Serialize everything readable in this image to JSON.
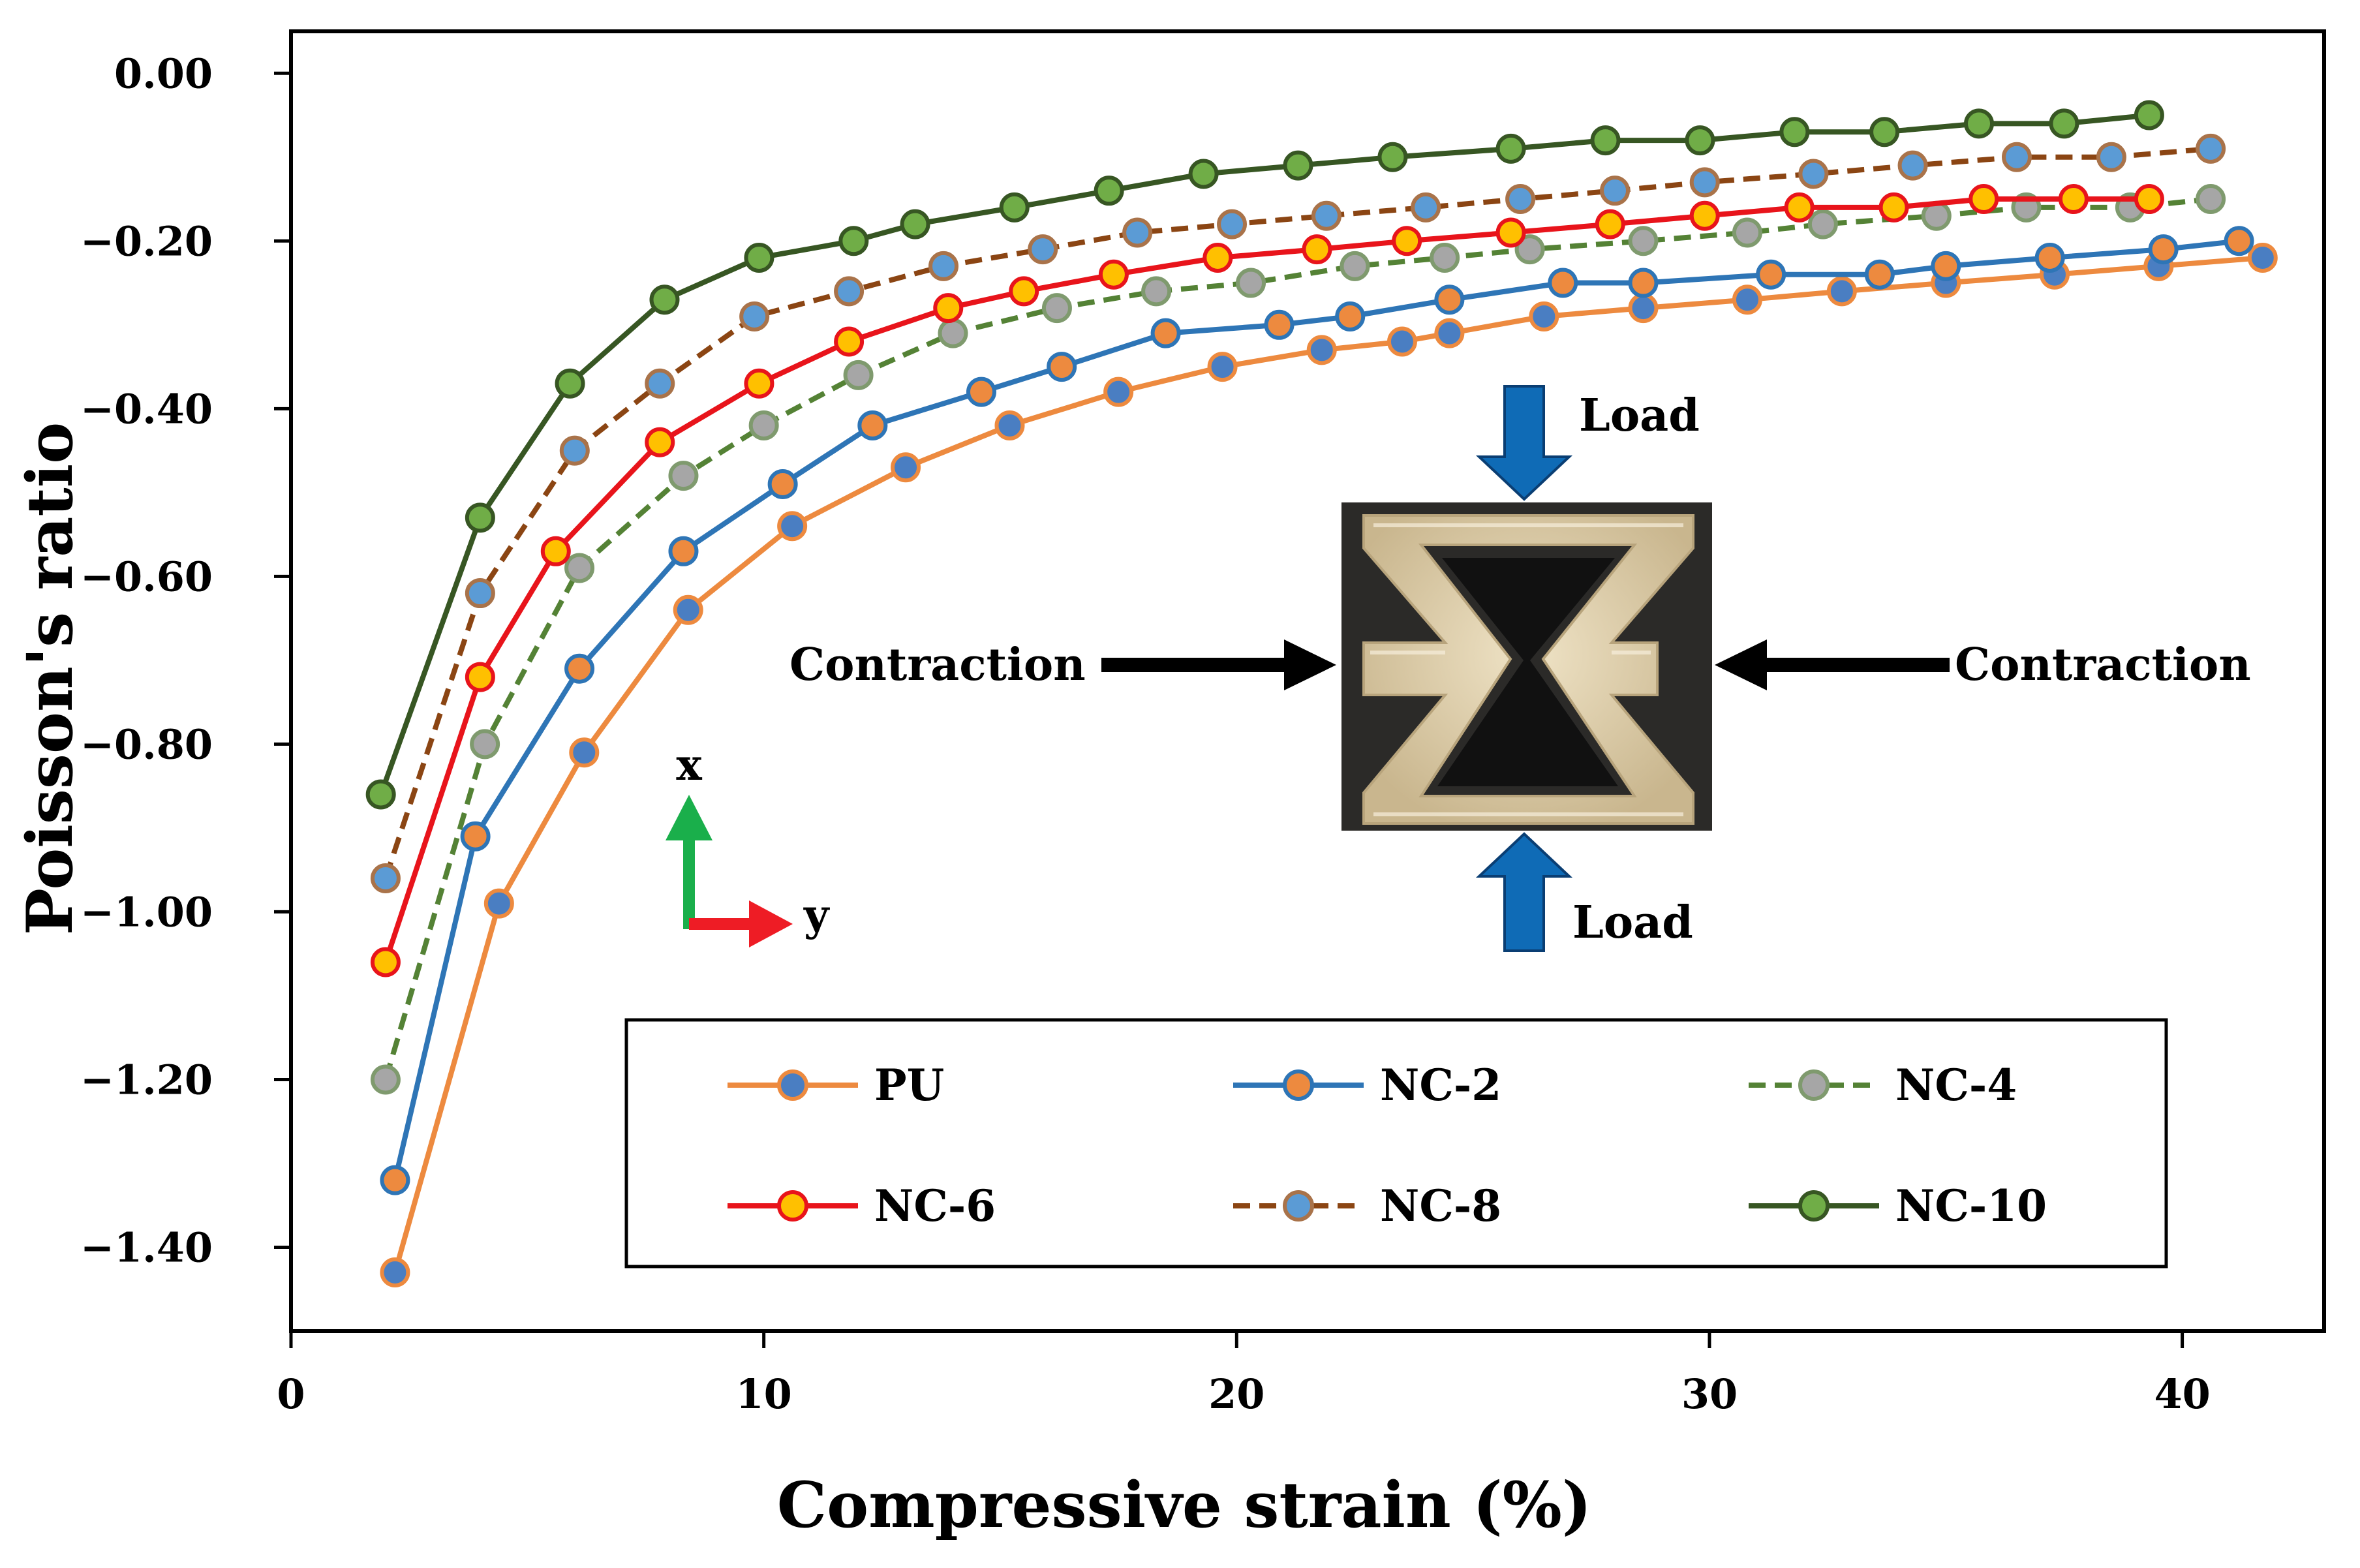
{
  "chart_data": {
    "type": "line",
    "xlabel": "Compressive strain (%)",
    "ylabel": "Poisson's ratio",
    "xlim": [
      0,
      43
    ],
    "ylim": [
      -1.5,
      0.05
    ],
    "xticks": [
      0,
      10,
      20,
      30,
      40
    ],
    "xtick_labels": [
      "0",
      "10",
      "20",
      "30",
      "40"
    ],
    "yticks": [
      0.0,
      -0.2,
      -0.4,
      -0.6,
      -0.8,
      -1.0,
      -1.2,
      -1.4
    ],
    "ytick_labels": [
      "0.00",
      "−0.20",
      "−0.40",
      "−0.60",
      "−0.80",
      "−1.00",
      "−1.20",
      "−1.40"
    ],
    "grid": false,
    "legend_position": "bottom-right",
    "series": [
      {
        "name": "PU",
        "line_color": "#ED8A3F",
        "marker_fill": "#4A7EC2",
        "marker_edge": "#ED8A3F",
        "dashed": false,
        "x": [
          2.2,
          4.4,
          6.2,
          8.4,
          10.6,
          13,
          15.2,
          17.5,
          19.7,
          21.8,
          23.5,
          24.5,
          26.5,
          28.6,
          30.8,
          32.8,
          35,
          37.3,
          39.5,
          41.7
        ],
        "y": [
          -1.43,
          -0.99,
          -0.81,
          -0.64,
          -0.54,
          -0.47,
          -0.42,
          -0.38,
          -0.35,
          -0.33,
          -0.32,
          -0.31,
          -0.29,
          -0.28,
          -0.27,
          -0.26,
          -0.25,
          -0.24,
          -0.23,
          -0.22
        ]
      },
      {
        "name": "NC-2",
        "line_color": "#2E75B6",
        "marker_fill": "#ED8A3F",
        "marker_edge": "#2E75B6",
        "dashed": false,
        "x": [
          2.2,
          3.9,
          6.1,
          8.3,
          10.4,
          12.3,
          14.6,
          16.3,
          18.5,
          20.9,
          22.4,
          24.5,
          26.9,
          28.6,
          31.3,
          33.6,
          35,
          37.2,
          39.6,
          41.2
        ],
        "y": [
          -1.32,
          -0.91,
          -0.71,
          -0.57,
          -0.49,
          -0.42,
          -0.38,
          -0.35,
          -0.31,
          -0.3,
          -0.29,
          -0.27,
          -0.25,
          -0.25,
          -0.24,
          -0.24,
          -0.23,
          -0.22,
          -0.21,
          -0.2
        ]
      },
      {
        "name": "NC-4",
        "line_color": "#548235",
        "marker_fill": "#A6A6A6",
        "marker_edge": "#7F9A6E",
        "dashed": true,
        "x": [
          2,
          4.1,
          6.1,
          8.3,
          10,
          12,
          14,
          16.2,
          18.3,
          20.3,
          22.5,
          24.4,
          26.2,
          28.6,
          30.8,
          32.4,
          34.8,
          36.7,
          38.9,
          40.6
        ],
        "y": [
          -1.2,
          -0.8,
          -0.59,
          -0.48,
          -0.42,
          -0.36,
          -0.31,
          -0.28,
          -0.26,
          -0.25,
          -0.23,
          -0.22,
          -0.21,
          -0.2,
          -0.19,
          -0.18,
          -0.17,
          -0.16,
          -0.16,
          -0.15
        ]
      },
      {
        "name": "NC-6",
        "line_color": "#E8141B",
        "marker_fill": "#FFC000",
        "marker_edge": "#E8141B",
        "dashed": false,
        "x": [
          2,
          4,
          5.6,
          7.8,
          9.9,
          11.8,
          13.9,
          15.5,
          17.4,
          19.6,
          21.7,
          23.6,
          25.8,
          27.9,
          29.9,
          31.9,
          33.9,
          35.8,
          37.7,
          39.3
        ],
        "y": [
          -1.06,
          -0.72,
          -0.57,
          -0.44,
          -0.37,
          -0.32,
          -0.28,
          -0.26,
          -0.24,
          -0.22,
          -0.21,
          -0.2,
          -0.19,
          -0.18,
          -0.17,
          -0.16,
          -0.16,
          -0.15,
          -0.15,
          -0.15
        ]
      },
      {
        "name": "NC-8",
        "line_color": "#8B4513",
        "marker_fill": "#5B9BD5",
        "marker_edge": "#A9734A",
        "dashed": true,
        "x": [
          2,
          4,
          6,
          7.8,
          9.8,
          11.8,
          13.8,
          15.9,
          17.9,
          19.9,
          21.9,
          24,
          26,
          28,
          29.9,
          32.2,
          34.3,
          36.5,
          38.5,
          40.6
        ],
        "y": [
          -0.96,
          -0.62,
          -0.45,
          -0.37,
          -0.29,
          -0.26,
          -0.23,
          -0.21,
          -0.19,
          -0.18,
          -0.17,
          -0.16,
          -0.15,
          -0.14,
          -0.13,
          -0.12,
          -0.11,
          -0.1,
          -0.1,
          -0.09
        ]
      },
      {
        "name": "NC-10",
        "line_color": "#375623",
        "marker_fill": "#70AD47",
        "marker_edge": "#375623",
        "dashed": false,
        "x": [
          1.9,
          4,
          5.9,
          7.9,
          9.9,
          11.9,
          13.2,
          15.3,
          17.3,
          19.3,
          21.3,
          23.3,
          25.8,
          27.8,
          29.8,
          31.8,
          33.7,
          35.7,
          37.5,
          39.3
        ],
        "y": [
          -0.86,
          -0.53,
          -0.37,
          -0.27,
          -0.22,
          -0.2,
          -0.18,
          -0.16,
          -0.14,
          -0.12,
          -0.11,
          -0.1,
          -0.09,
          -0.08,
          -0.08,
          -0.07,
          -0.07,
          -0.06,
          -0.06,
          -0.05
        ]
      }
    ],
    "annotations": {
      "load_top": "Load",
      "load_bottom": "Load",
      "contraction_left": "Contraction",
      "contraction_right": "Contraction",
      "axis_x": "x",
      "axis_y": "y"
    },
    "colors": {
      "load_arrow": "#0F6BB6",
      "contraction_arrow": "#000000",
      "axis_x_arrow": "#1AAF4B",
      "axis_y_arrow": "#EE1C25",
      "photo_background": "#2B2A28",
      "specimen": "#E3D3B0"
    }
  }
}
